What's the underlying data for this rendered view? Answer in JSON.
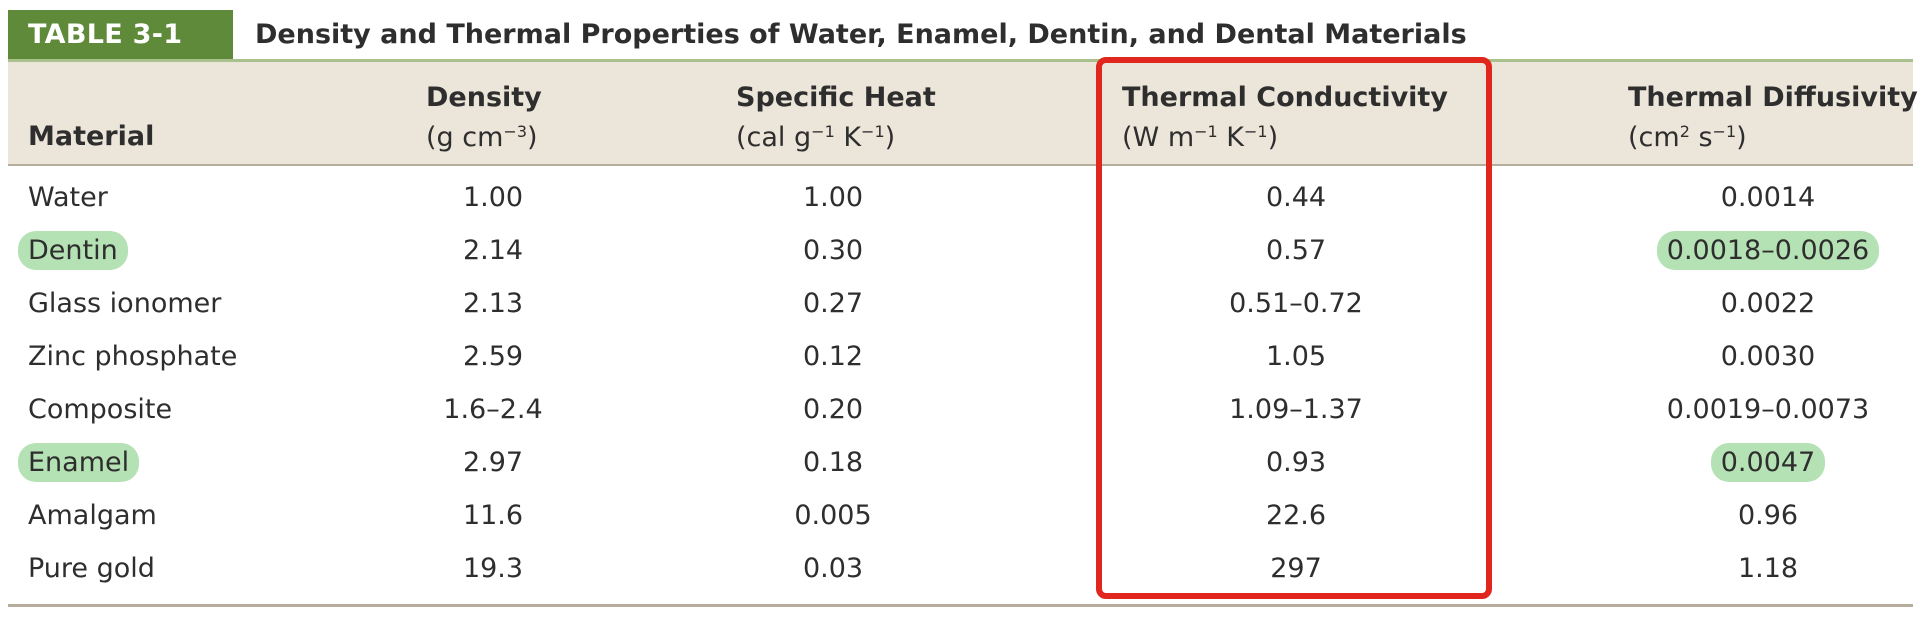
{
  "table": {
    "label": "TABLE 3-1",
    "title": "Density and Thermal Properties of Water, Enamel, Dentin, and Dental Materials",
    "headers": {
      "material": "Material",
      "density_name": "Density",
      "density_unit_a": "(g cm",
      "density_unit_exp": "−3",
      "density_unit_b": ")",
      "specific_name": "Specific Heat",
      "specific_unit_a": "(cal g",
      "specific_unit_exp1": "−1",
      "specific_unit_mid": " K",
      "specific_unit_exp2": "−1",
      "specific_unit_b": ")",
      "conduct_name": "Thermal Conductivity",
      "conduct_unit_a": "(W m",
      "conduct_unit_exp1": "−1",
      "conduct_unit_mid": " K",
      "conduct_unit_exp2": "−1",
      "conduct_unit_b": ")",
      "diffus_name": "Thermal Diffusivity",
      "diffus_unit_a": "(cm",
      "diffus_unit_exp1": "2",
      "diffus_unit_mid": " s",
      "diffus_unit_exp2": "−1",
      "diffus_unit_b": ")"
    },
    "rows": [
      {
        "material": "Water",
        "density": "1.00",
        "specific_heat": "1.00",
        "conductivity": "0.44",
        "diffusivity": "0.0014"
      },
      {
        "material": "Dentin",
        "density": "2.14",
        "specific_heat": "0.30",
        "conductivity": "0.57",
        "diffusivity": "0.0018–0.0026"
      },
      {
        "material": "Glass ionomer",
        "density": "2.13",
        "specific_heat": "0.27",
        "conductivity": "0.51–0.72",
        "diffusivity": "0.0022"
      },
      {
        "material": "Zinc phosphate",
        "density": "2.59",
        "specific_heat": "0.12",
        "conductivity": "1.05",
        "diffusivity": "0.0030"
      },
      {
        "material": "Composite",
        "density": "1.6–2.4",
        "specific_heat": "0.20",
        "conductivity": "1.09–1.37",
        "diffusivity": "0.0019–0.0073"
      },
      {
        "material": "Enamel",
        "density": "2.97",
        "specific_heat": "0.18",
        "conductivity": "0.93",
        "diffusivity": "0.0047"
      },
      {
        "material": "Amalgam",
        "density": "11.6",
        "specific_heat": "0.005",
        "conductivity": "22.6",
        "diffusivity": "0.96"
      },
      {
        "material": "Pure gold",
        "density": "19.3",
        "specific_heat": "0.03",
        "conductivity": "297",
        "diffusivity": "1.18"
      }
    ]
  },
  "colors": {
    "label_bg": "#5e8a3a",
    "header_band": "#ece5d9",
    "highlight": "#b5e2b4",
    "annotation_box": "#e0261d"
  }
}
